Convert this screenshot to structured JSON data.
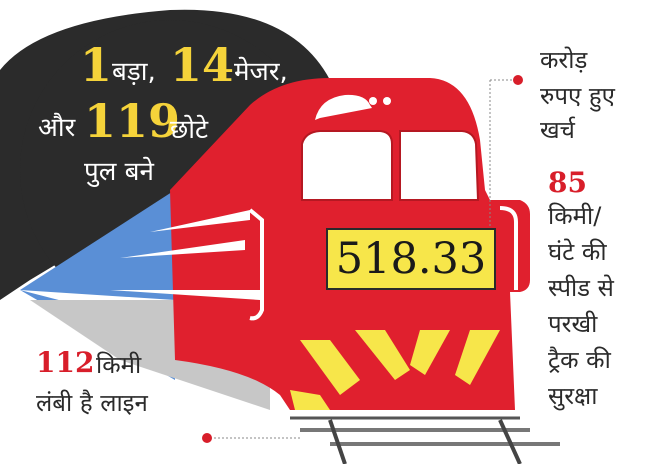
{
  "bridges": {
    "big_count": "1",
    "big_label": "बड़ा,",
    "major_count": "14",
    "major_label": "मेजर,",
    "and_label": "और",
    "small_count": "119",
    "small_label": "छोटे",
    "line_end": "पुल बने"
  },
  "cost": {
    "value": "518.33",
    "line1": "करोड़",
    "line2": "रुपए हुए",
    "line3": "खर्च"
  },
  "speed": {
    "value": "85",
    "lines": [
      "किमी/",
      "घंटे की",
      "स्पीड से",
      "परखी",
      "ट्रैक की",
      "सुरक्षा"
    ]
  },
  "length": {
    "value": "112",
    "unit": "किमी",
    "line2": "लंबी है लाइन"
  },
  "colors": {
    "train_red": "#e0202e",
    "accent_red": "#d81e2a",
    "number_yellow": "#f5d33a",
    "box_yellow": "#f7e64a",
    "dark_circle": "#2b2b2b",
    "speed_blue": "#5a8fd6"
  }
}
